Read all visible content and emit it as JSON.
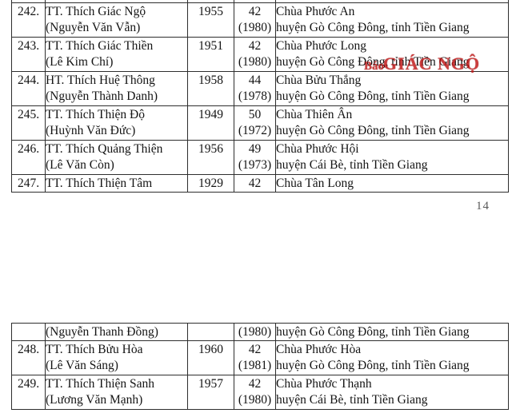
{
  "page_number": "14",
  "watermark": {
    "prefix": "Báo",
    "main": "GIÁC NGỘ"
  },
  "colors": {
    "watermark_red": "#c01414",
    "border": "#2e2e2e",
    "text": "#141414",
    "page_number_gray": "#585858"
  },
  "table1": {
    "rows": [
      {
        "no": "242.",
        "name": [
          "TT. Thích Giác Ngộ",
          "(Nguyễn Văn Vẫn)"
        ],
        "year": "1955",
        "age": [
          "42",
          "(1980)"
        ],
        "addr": [
          "Chùa Phước An",
          "huyện Gò Công Đông, tỉnh Tiền Giang"
        ]
      },
      {
        "no": "243.",
        "name": [
          "TT. Thích Giác Thiền",
          "(Lê Kim Chí)"
        ],
        "year": "1951",
        "age": [
          "42",
          "(1980)"
        ],
        "addr": [
          "Chùa Phước Long",
          "huyện Gò Công Đông, tỉnh Tiền Giang"
        ]
      },
      {
        "no": "244.",
        "name": [
          "HT. Thích Huệ Thông",
          "(Nguyễn Thành Danh)"
        ],
        "year": "1958",
        "age": [
          "44",
          "(1978)"
        ],
        "addr": [
          "Chùa Bửu Thắng",
          "huyện Gò Công Đông, tỉnh Tiền Giang"
        ]
      },
      {
        "no": "245.",
        "name": [
          "TT. Thích Thiện Độ",
          "(Huỳnh Văn Đức)"
        ],
        "year": "1949",
        "age": [
          "50",
          "(1972)"
        ],
        "addr": [
          "Chùa Thiên Ân",
          "huyện Gò Công Đông, tỉnh Tiền Giang"
        ]
      },
      {
        "no": "246.",
        "name": [
          "TT. Thích Quảng Thiện",
          "(Lê Văn Còn)"
        ],
        "year": "1956",
        "age": [
          "49",
          "(1973)"
        ],
        "addr": [
          "Chùa Phước Hội",
          "huyện Cái Bè, tỉnh Tiền Giang"
        ]
      },
      {
        "no": "247.",
        "name": [
          "TT. Thích Thiện Tâm"
        ],
        "year": "1929",
        "age": [
          "42"
        ],
        "addr": [
          "Chùa Tân Long"
        ]
      }
    ]
  },
  "table2": {
    "rows": [
      {
        "no": "",
        "name": [
          "(Nguyễn Thanh Đồng)"
        ],
        "year": "",
        "age": [
          "(1980)"
        ],
        "addr": [
          "huyện Gò Công Đông, tỉnh Tiền Giang"
        ]
      },
      {
        "no": "248.",
        "name": [
          "TT. Thích Bửu Hòa",
          "(Lê Văn Sáng)"
        ],
        "year": "1960",
        "age": [
          "42",
          "(1981)"
        ],
        "addr": [
          "Chùa Phước Hòa",
          "huyện Gò Công Đông, tỉnh Tiền Giang"
        ]
      },
      {
        "no": "249.",
        "name": [
          "TT. Thích Thiện Sanh",
          "(Lương Văn Mạnh)"
        ],
        "year": "1957",
        "age": [
          "42",
          "(1980)"
        ],
        "addr": [
          "Chùa Phước Thạnh",
          "huyện Cái Bè, tỉnh Tiền Giang"
        ]
      }
    ]
  }
}
